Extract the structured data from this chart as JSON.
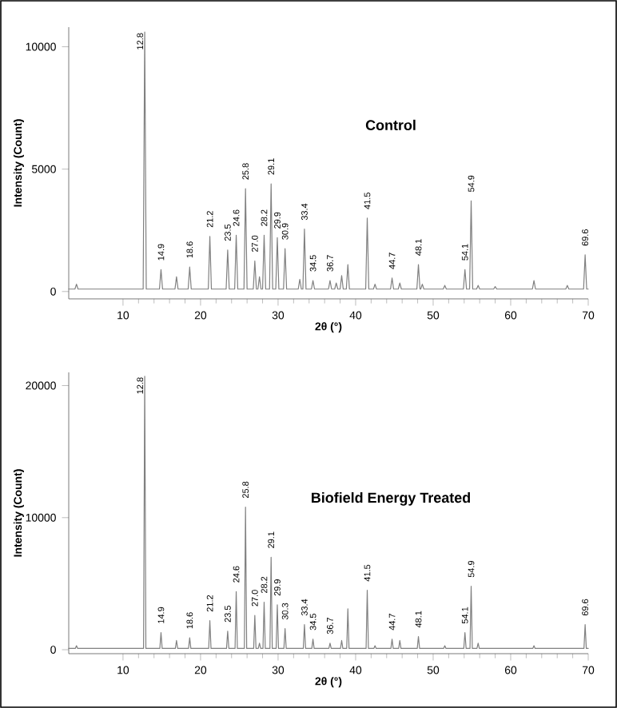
{
  "chart_data": [
    {
      "type": "line",
      "title": "Control",
      "xlabel": "2θ (°)",
      "ylabel": "Intensity (Count)",
      "xlim": [
        3,
        70
      ],
      "ylim": [
        -300,
        10800
      ],
      "xticks": [
        10,
        20,
        30,
        40,
        50,
        60,
        70
      ],
      "yticks": [
        0,
        5000,
        10000
      ],
      "series": [
        {
          "color": "#808080",
          "x": [
            3,
            3.8,
            4.0,
            4.2,
            12.6,
            12.8,
            13.0,
            14.7,
            14.9,
            15.1,
            16.7,
            16.9,
            17.1,
            18.4,
            18.6,
            18.8,
            21.0,
            21.2,
            21.4,
            23.3,
            23.5,
            23.7,
            24.4,
            24.6,
            24.8,
            25.6,
            25.8,
            26.0,
            26.8,
            27.0,
            27.2,
            27.4,
            27.6,
            27.8,
            28.0,
            28.2,
            28.4,
            28.9,
            29.1,
            29.3,
            29.7,
            29.9,
            30.1,
            30.7,
            30.9,
            31.1,
            32.6,
            32.8,
            33.0,
            33.2,
            33.4,
            33.6,
            34.3,
            34.5,
            34.7,
            36.5,
            36.7,
            36.9,
            37.3,
            37.5,
            37.7,
            38.0,
            38.2,
            38.4,
            38.8,
            39.0,
            39.2,
            41.3,
            41.5,
            41.7,
            42.3,
            42.5,
            42.7,
            44.5,
            44.7,
            44.9,
            45.5,
            45.7,
            45.9,
            47.9,
            48.1,
            48.3,
            48.4,
            48.6,
            48.8,
            51.3,
            51.5,
            51.7,
            53.9,
            54.1,
            54.3,
            54.7,
            54.9,
            55.1,
            55.6,
            55.8,
            56.0,
            57.8,
            58.0,
            58.2,
            62.8,
            63.0,
            63.2,
            67.1,
            67.3,
            67.5,
            69.4,
            69.6,
            69.8,
            70
          ],
          "values": [
            100,
            100,
            300,
            100,
            100,
            10600,
            100,
            100,
            900,
            100,
            100,
            600,
            100,
            100,
            1000,
            100,
            100,
            2250,
            100,
            100,
            1700,
            100,
            100,
            2300,
            100,
            100,
            4200,
            100,
            100,
            1250,
            100,
            100,
            600,
            100,
            100,
            2300,
            100,
            100,
            4400,
            100,
            100,
            2200,
            100,
            100,
            1750,
            100,
            100,
            500,
            100,
            100,
            2550,
            100,
            100,
            450,
            100,
            100,
            450,
            100,
            100,
            350,
            100,
            100,
            650,
            100,
            100,
            1100,
            100,
            100,
            3000,
            100,
            100,
            300,
            100,
            100,
            550,
            100,
            100,
            350,
            100,
            100,
            1100,
            100,
            100,
            300,
            100,
            100,
            250,
            100,
            100,
            900,
            100,
            100,
            3700,
            100,
            100,
            250,
            100,
            100,
            200,
            100,
            100,
            450,
            100,
            100,
            250,
            100,
            100,
            1500,
            100,
            100
          ]
        }
      ],
      "annotations": [
        {
          "text": "12.8",
          "x": 12.8,
          "y": 10600
        },
        {
          "text": "14.9",
          "x": 14.9,
          "y": 900
        },
        {
          "text": "18.6",
          "x": 18.6,
          "y": 1000
        },
        {
          "text": "21.2",
          "x": 21.2,
          "y": 2250
        },
        {
          "text": "23.5",
          "x": 23.5,
          "y": 1700
        },
        {
          "text": "24.6",
          "x": 24.6,
          "y": 2300
        },
        {
          "text": "25.8",
          "x": 25.8,
          "y": 4200
        },
        {
          "text": "27.0",
          "x": 27.0,
          "y": 1250
        },
        {
          "text": "28.2",
          "x": 28.2,
          "y": 2300
        },
        {
          "text": "29.1",
          "x": 29.1,
          "y": 4400
        },
        {
          "text": "29.9",
          "x": 29.9,
          "y": 2200
        },
        {
          "text": "30.9",
          "x": 30.9,
          "y": 1750
        },
        {
          "text": "33.4",
          "x": 33.4,
          "y": 2550
        },
        {
          "text": "34.5",
          "x": 34.5,
          "y": 450
        },
        {
          "text": "36.7",
          "x": 36.7,
          "y": 450
        },
        {
          "text": "41.5",
          "x": 41.5,
          "y": 3000
        },
        {
          "text": "44.7",
          "x": 44.7,
          "y": 550
        },
        {
          "text": "48.1",
          "x": 48.1,
          "y": 1100
        },
        {
          "text": "54.1",
          "x": 54.1,
          "y": 900
        },
        {
          "text": "54.9",
          "x": 54.9,
          "y": 3700
        },
        {
          "text": "69.6",
          "x": 69.6,
          "y": 1500
        }
      ]
    },
    {
      "type": "line",
      "title": "Biofield Energy Treated",
      "xlabel": "2θ (°)",
      "ylabel": "Intensity (Count)",
      "xlim": [
        3,
        70
      ],
      "ylim": [
        -300,
        21000
      ],
      "xticks": [
        10,
        20,
        30,
        40,
        50,
        60,
        70
      ],
      "yticks": [
        0,
        10000,
        20000
      ],
      "series": [
        {
          "color": "#808080",
          "x": [
            3,
            3.85,
            4.0,
            4.15,
            12.65,
            12.8,
            12.95,
            14.75,
            14.9,
            15.05,
            16.75,
            16.9,
            17.05,
            18.45,
            18.6,
            18.75,
            21.05,
            21.2,
            21.35,
            23.35,
            23.5,
            23.65,
            24.45,
            24.6,
            24.75,
            25.65,
            25.8,
            25.95,
            26.85,
            27.0,
            27.15,
            27.45,
            27.6,
            27.75,
            28.05,
            28.2,
            28.35,
            28.95,
            29.1,
            29.25,
            29.75,
            29.9,
            30.05,
            30.75,
            30.9,
            31.05,
            33.25,
            33.4,
            33.55,
            34.35,
            34.5,
            34.65,
            36.55,
            36.7,
            36.85,
            38.05,
            38.2,
            38.35,
            38.85,
            39.0,
            39.15,
            41.35,
            41.5,
            41.65,
            42.35,
            42.5,
            42.65,
            44.55,
            44.7,
            44.85,
            45.55,
            45.7,
            45.85,
            47.95,
            48.1,
            48.25,
            51.35,
            51.5,
            51.65,
            53.95,
            54.1,
            54.25,
            54.75,
            54.9,
            55.05,
            55.65,
            55.8,
            55.95,
            62.85,
            63.0,
            63.15,
            69.45,
            69.6,
            69.75,
            70
          ],
          "values": [
            100,
            100,
            300,
            100,
            100,
            20700,
            100,
            100,
            1300,
            100,
            100,
            700,
            100,
            100,
            900,
            100,
            100,
            2200,
            100,
            100,
            1400,
            100,
            100,
            4400,
            100,
            100,
            10800,
            100,
            100,
            2600,
            100,
            100,
            500,
            100,
            100,
            3600,
            100,
            100,
            7000,
            100,
            100,
            3400,
            100,
            100,
            1600,
            100,
            100,
            1900,
            100,
            100,
            800,
            100,
            100,
            500,
            100,
            100,
            700,
            100,
            100,
            3100,
            100,
            100,
            4500,
            100,
            100,
            300,
            100,
            100,
            800,
            100,
            100,
            700,
            100,
            100,
            1000,
            100,
            100,
            300,
            100,
            100,
            1300,
            100,
            100,
            4800,
            100,
            100,
            500,
            100,
            100,
            300,
            100,
            100,
            1900,
            100,
            100
          ]
        }
      ],
      "annotations": [
        {
          "text": "12.8",
          "x": 12.8,
          "y": 20700
        },
        {
          "text": "14.9",
          "x": 14.9,
          "y": 1300
        },
        {
          "text": "18.6",
          "x": 18.6,
          "y": 900
        },
        {
          "text": "21.2",
          "x": 21.2,
          "y": 2200
        },
        {
          "text": "23.5",
          "x": 23.5,
          "y": 1400
        },
        {
          "text": "24.6",
          "x": 24.6,
          "y": 4400
        },
        {
          "text": "25.8",
          "x": 25.8,
          "y": 10800
        },
        {
          "text": "27.0",
          "x": 27.0,
          "y": 2600
        },
        {
          "text": "28.2",
          "x": 28.2,
          "y": 3600
        },
        {
          "text": "29.1",
          "x": 29.1,
          "y": 7000
        },
        {
          "text": "29.9",
          "x": 29.9,
          "y": 3400
        },
        {
          "text": "30.3",
          "x": 30.9,
          "y": 1600
        },
        {
          "text": "33.4",
          "x": 33.4,
          "y": 1900
        },
        {
          "text": "34.5",
          "x": 34.5,
          "y": 800
        },
        {
          "text": "36.7",
          "x": 36.7,
          "y": 500
        },
        {
          "text": "41.5",
          "x": 41.5,
          "y": 4500
        },
        {
          "text": "44.7",
          "x": 44.7,
          "y": 800
        },
        {
          "text": "48.1",
          "x": 48.1,
          "y": 1000
        },
        {
          "text": "54.1",
          "x": 54.1,
          "y": 1300
        },
        {
          "text": "54.9",
          "x": 54.9,
          "y": 4800
        },
        {
          "text": "69.6",
          "x": 69.6,
          "y": 1900
        }
      ]
    }
  ]
}
